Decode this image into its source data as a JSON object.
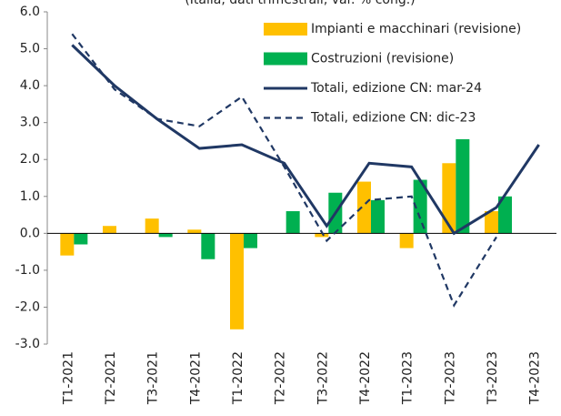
{
  "chart_data": {
    "type": "bar",
    "subtitle": "(Italia, dati trimestrali, var. % cong.)",
    "categories": [
      "T1-2021",
      "T2-2021",
      "T3-2021",
      "T4-2021",
      "T1-2022",
      "T2-2022",
      "T3-2022",
      "T4-2022",
      "T1-2023",
      "T2-2023",
      "T3-2023",
      "T4-2023"
    ],
    "series": [
      {
        "name": "Impianti e macchinari (revisione)",
        "type": "bar",
        "color": "#ffc000",
        "values": [
          -0.6,
          0.2,
          0.4,
          0.1,
          -2.6,
          null,
          -0.1,
          1.4,
          -0.4,
          1.9,
          0.6,
          null
        ]
      },
      {
        "name": "Costruzioni (revisione)",
        "type": "bar",
        "color": "#00b050",
        "values": [
          -0.3,
          0.0,
          -0.1,
          -0.7,
          -0.4,
          0.6,
          1.1,
          0.9,
          1.45,
          2.55,
          1.0,
          null
        ]
      },
      {
        "name": "Totali, edizione CN: mar-24",
        "type": "line",
        "linestyle": "solid",
        "color": "#203864",
        "values": [
          5.1,
          4.0,
          3.1,
          2.3,
          2.4,
          1.9,
          0.2,
          1.9,
          1.8,
          0.0,
          0.7,
          2.4
        ]
      },
      {
        "name": "Totali, edizione CN: dic-23",
        "type": "line",
        "linestyle": "dashed",
        "color": "#203864",
        "values": [
          5.4,
          3.9,
          3.1,
          2.9,
          3.7,
          1.8,
          -0.2,
          0.9,
          1.0,
          -1.95,
          -0.1,
          null
        ]
      }
    ],
    "ylim": [
      -3,
      6
    ],
    "yticks": [
      {
        "value": -3,
        "label": "-3.0"
      },
      {
        "value": -2,
        "label": "-2.0"
      },
      {
        "value": -1,
        "label": "-1.0"
      },
      {
        "value": 0,
        "label": "0.0"
      },
      {
        "value": 1,
        "label": "1.0"
      },
      {
        "value": 2,
        "label": "2.0"
      },
      {
        "value": 3,
        "label": "3.0"
      },
      {
        "value": 4,
        "label": "4.0"
      },
      {
        "value": 5,
        "label": "5.0"
      },
      {
        "value": 6,
        "label": "6.0"
      }
    ],
    "grid": false,
    "legend": "upper-right"
  }
}
